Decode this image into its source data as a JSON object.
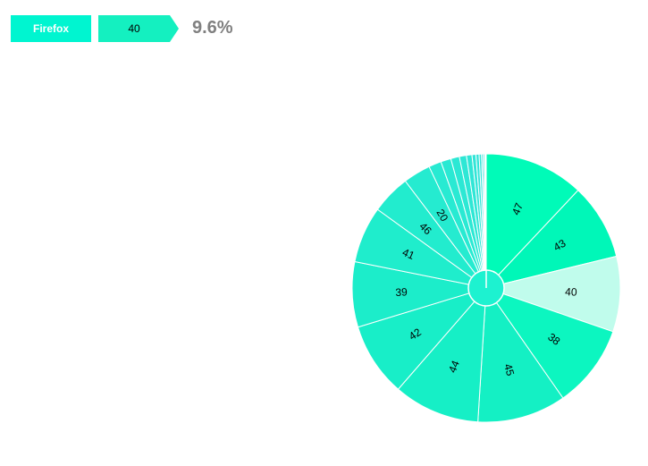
{
  "breadcrumb": {
    "browser": "Firefox",
    "version": "40",
    "percentage": "9.6%"
  },
  "colors": {
    "browser_crumb": "#00f5d0",
    "version_crumb": "#14f0c0",
    "percentage_text": "#808080",
    "center_circle": "#1df2d0"
  },
  "chart_data": {
    "type": "pie",
    "title": "",
    "series": [
      {
        "values": [
          {
            "label": "47",
            "value": 12.7,
            "color": "#00fbb8",
            "show_label": true
          },
          {
            "label": "43",
            "value": 9.7,
            "color": "#00f7b8",
            "show_label": true
          },
          {
            "label": "40",
            "value": 9.6,
            "color": "#c0fcec",
            "show_label": true
          },
          {
            "label": "38",
            "value": 10.6,
            "color": "#0cf6c0",
            "show_label": true
          },
          {
            "label": "45",
            "value": 11.3,
            "color": "#14f0c4",
            "show_label": true
          },
          {
            "label": "44",
            "value": 11.0,
            "color": "#16efc6",
            "show_label": true
          },
          {
            "label": "42",
            "value": 9.4,
            "color": "#18eec8",
            "show_label": true
          },
          {
            "label": "39",
            "value": 8.3,
            "color": "#1cedca",
            "show_label": true
          },
          {
            "label": "41",
            "value": 7.2,
            "color": "#1fedcc",
            "show_label": true
          },
          {
            "label": "46",
            "value": 5.0,
            "color": "#22ecce",
            "show_label": true
          },
          {
            "label": "20",
            "value": 3.5,
            "color": "#25ebd0",
            "show_label": true
          },
          {
            "label": "",
            "value": 1.6,
            "color": "#28ead2",
            "show_label": false
          },
          {
            "label": "",
            "value": 1.3,
            "color": "#2ae9d3",
            "show_label": false
          },
          {
            "label": "",
            "value": 1.1,
            "color": "#2ce8d4",
            "show_label": false
          },
          {
            "label": "",
            "value": 0.9,
            "color": "#2ee7d5",
            "show_label": false
          },
          {
            "label": "",
            "value": 0.7,
            "color": "#30e6d6",
            "show_label": false
          },
          {
            "label": "",
            "value": 0.5,
            "color": "#32e5d7",
            "show_label": false
          },
          {
            "label": "",
            "value": 0.4,
            "color": "#33e4d8",
            "show_label": false
          },
          {
            "label": "",
            "value": 0.3,
            "color": "#35e3d9",
            "show_label": false
          },
          {
            "label": "",
            "value": 0.2,
            "color": "#37e2da",
            "show_label": false
          },
          {
            "label": "",
            "value": 0.2,
            "color": "#39e1db",
            "show_label": false
          },
          {
            "label": "",
            "value": 0.1,
            "color": "#3be0dc",
            "show_label": false
          },
          {
            "label": "",
            "value": 0.1,
            "color": "#3ddfdd",
            "show_label": false
          }
        ]
      }
    ],
    "legend": "none"
  }
}
